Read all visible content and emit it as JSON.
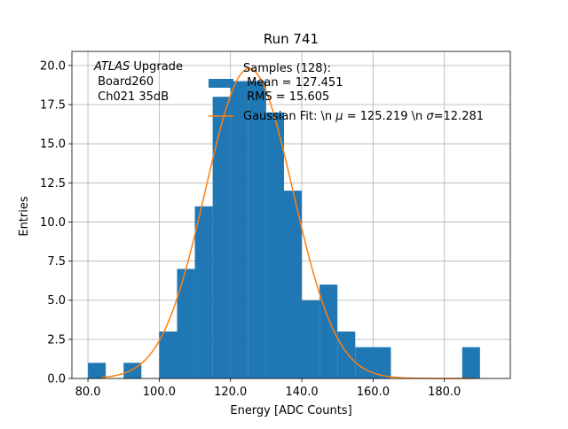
{
  "chart_data": {
    "type": "bar",
    "title": "Run 741",
    "xlabel": "Energy [ADC Counts]",
    "ylabel": "Entries",
    "xlim": [
      75.5,
      198.5
    ],
    "ylim": [
      0,
      20.9
    ],
    "grid": true,
    "x_ticks": [
      80,
      100,
      120,
      140,
      160,
      180
    ],
    "x_tick_labels": [
      "80.0",
      "100.0",
      "120.0",
      "140.0",
      "160.0",
      "180.0"
    ],
    "y_ticks": [
      0,
      2.5,
      5,
      7.5,
      10,
      12.5,
      15,
      17.5,
      20
    ],
    "y_tick_labels": [
      "0.0",
      "2.5",
      "5.0",
      "7.5",
      "10.0",
      "12.5",
      "15.0",
      "17.5",
      "20.0"
    ],
    "bin_edges": [
      80,
      85,
      90,
      95,
      100,
      105,
      110,
      115,
      120,
      125,
      130,
      135,
      140,
      145,
      150,
      155,
      160,
      165,
      170,
      175,
      180,
      185,
      190
    ],
    "counts": [
      1,
      0,
      1,
      0,
      3,
      7,
      11,
      18,
      19,
      19,
      17,
      12,
      5,
      6,
      3,
      2,
      2,
      0,
      0,
      0,
      0,
      2
    ],
    "bar_color": "#1f77b4",
    "fit_color": "#ff7f0e",
    "fit": {
      "mu": 125.219,
      "sigma": 12.281,
      "amplitude": 19.8,
      "x_range": [
        84,
        188
      ]
    },
    "annotation": {
      "italic": "ATLAS",
      "line1_rest": " Upgrade",
      "line2": " Board260",
      "line3": " Ch021 35dB"
    },
    "legend": {
      "placement": "top-right",
      "entries": [
        {
          "kind": "patch",
          "lines": [
            "Samples (128):",
            " Mean = 127.451",
            " RMS = 15.605"
          ]
        },
        {
          "kind": "line",
          "prefix": "Gaussian Fit: \\n ",
          "mu_symbol": "μ",
          "mid": " = 125.219 \\n ",
          "sigma_symbol": "σ",
          "suffix": "=12.281"
        }
      ]
    }
  }
}
